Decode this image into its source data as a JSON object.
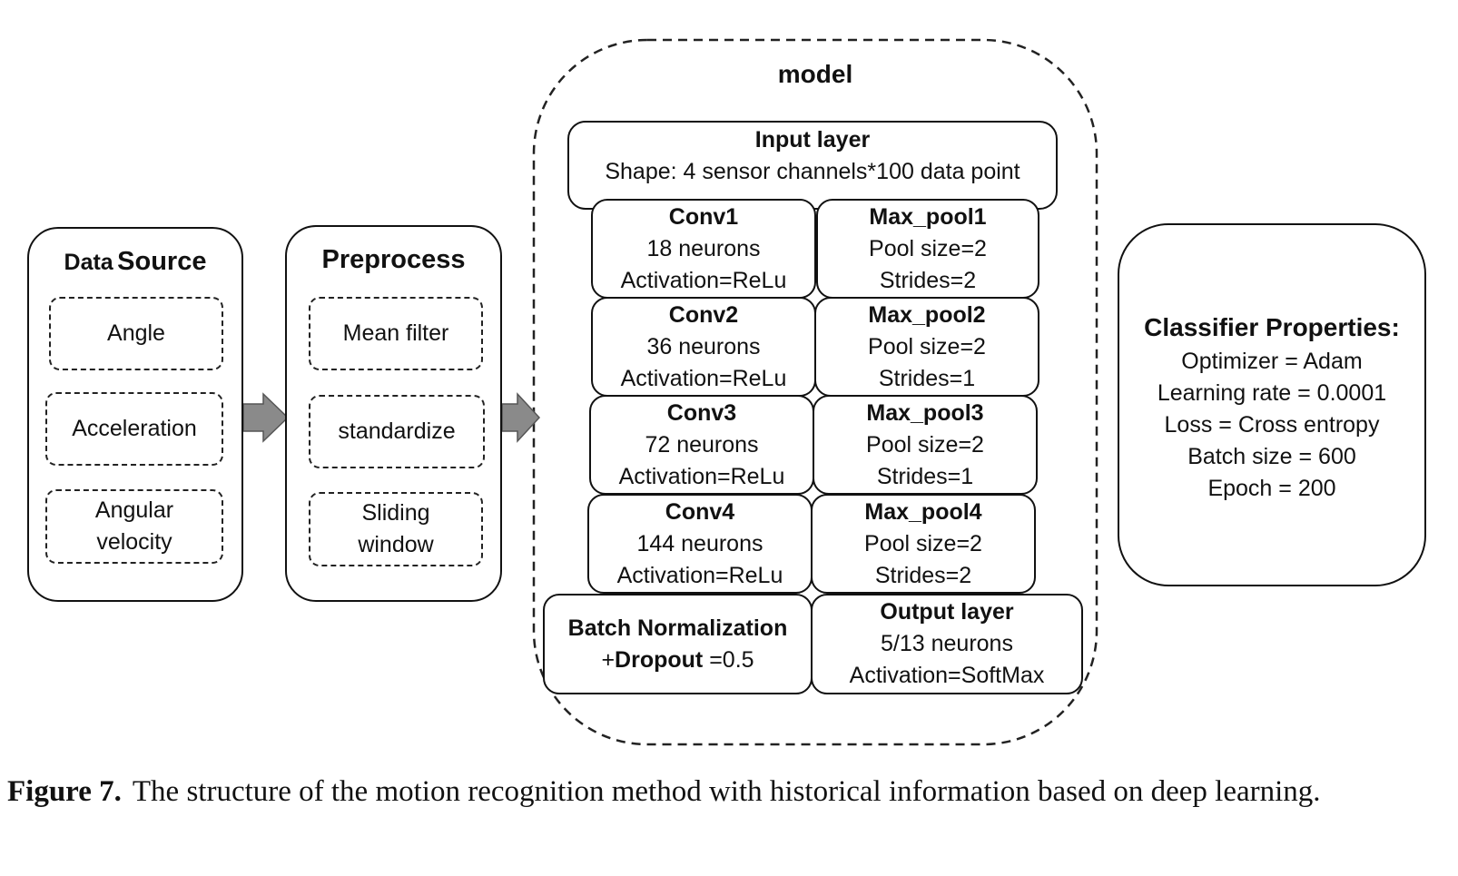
{
  "data_source": {
    "title_prefix": "Data",
    "title_main": "Source",
    "items": [
      {
        "lines": [
          "Angle"
        ]
      },
      {
        "lines": [
          "Acceleration"
        ]
      },
      {
        "lines": [
          "Angular",
          "velocity"
        ]
      }
    ]
  },
  "preprocess": {
    "title": "Preprocess",
    "items": [
      {
        "lines": [
          "Mean filter"
        ]
      },
      {
        "lines": [
          "standardize"
        ]
      },
      {
        "lines": [
          "Sliding",
          "window"
        ]
      }
    ]
  },
  "model": {
    "title": "model",
    "input": {
      "title": "Input layer",
      "desc": "Shape: 4 sensor channels*100 data point"
    },
    "conv_layers": [
      {
        "title": "Conv1",
        "neurons": "18 neurons",
        "activation": "Activation=ReLu"
      },
      {
        "title": "Conv2",
        "neurons": "36 neurons",
        "activation": "Activation=ReLu"
      },
      {
        "title": "Conv3",
        "neurons": "72 neurons",
        "activation": "Activation=ReLu"
      },
      {
        "title": "Conv4",
        "neurons": "144 neurons",
        "activation": "Activation=ReLu"
      }
    ],
    "pool_layers": [
      {
        "title": "Max_pool1",
        "pool": "Pool size=2",
        "strides": "Strides=2"
      },
      {
        "title": "Max_pool2",
        "pool": "Pool size=2",
        "strides": "Strides=1"
      },
      {
        "title": "Max_pool3",
        "pool": "Pool size=2",
        "strides": "Strides=1"
      },
      {
        "title": "Max_pool4",
        "pool": "Pool size=2",
        "strides": "Strides=2"
      }
    ],
    "batchnorm": {
      "title": "Batch Normalization",
      "prefix": "+",
      "dropout_label": "Dropout",
      "dropout_value": " =0.5"
    },
    "output": {
      "title": "Output layer",
      "neurons": "5/13 neurons",
      "activation": "Activation=SoftMax"
    }
  },
  "classifier": {
    "title": "Classifier Properties:",
    "lines": [
      "Optimizer = Adam",
      "Learning rate = 0.0001",
      "Loss = Cross entropy",
      "Batch size = 600",
      "Epoch = 200"
    ]
  },
  "caption": {
    "label": "Figure 7.",
    "text": "The structure of the motion recognition method with historical information based on deep learning."
  },
  "colors": {
    "arrow_fill": "#8a8a8a",
    "stroke": "#111111"
  }
}
